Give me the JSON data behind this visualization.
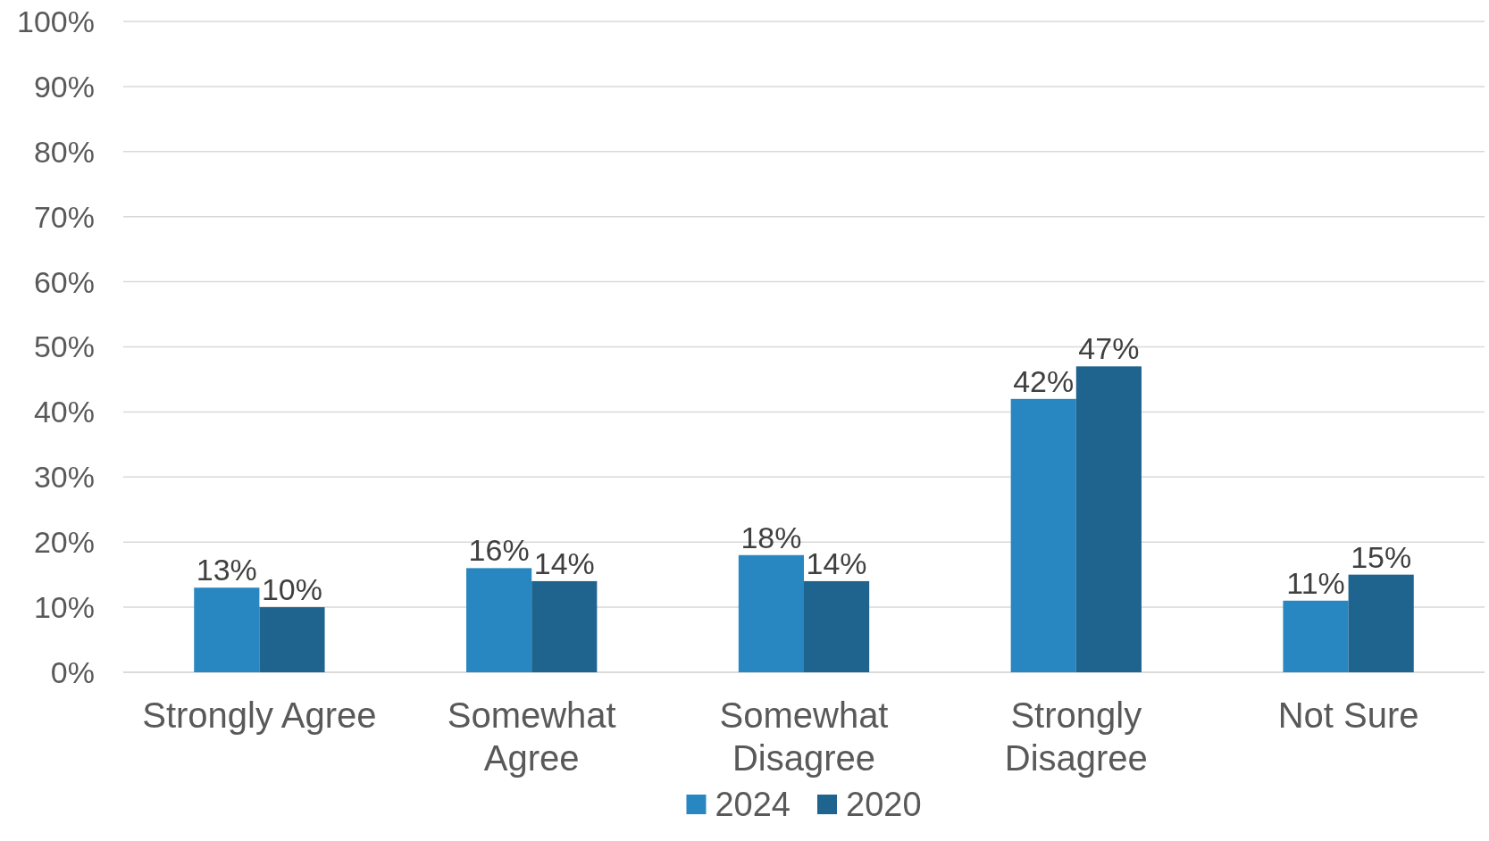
{
  "chart_data": {
    "type": "bar",
    "categories": [
      "Strongly Agree",
      "Somewhat Agree",
      "Somewhat Disagree",
      "Strongly Disagree",
      "Not Sure"
    ],
    "series": [
      {
        "name": "2024",
        "color": "#2886c0",
        "values": [
          13,
          16,
          18,
          42,
          11
        ],
        "value_labels": [
          "13%",
          "16%",
          "18%",
          "42%",
          "11%"
        ]
      },
      {
        "name": "2020",
        "color": "#1f638f",
        "values": [
          10,
          14,
          14,
          47,
          15
        ],
        "value_labels": [
          "10%",
          "14%",
          "14%",
          "47%",
          "15%"
        ]
      }
    ],
    "ylim": [
      0,
      100
    ],
    "yticks": [
      {
        "value": 0,
        "label": "0%"
      },
      {
        "value": 10,
        "label": "10%"
      },
      {
        "value": 20,
        "label": "20%"
      },
      {
        "value": 30,
        "label": "30%"
      },
      {
        "value": 40,
        "label": "40%"
      },
      {
        "value": 50,
        "label": "50%"
      },
      {
        "value": 60,
        "label": "60%"
      },
      {
        "value": 70,
        "label": "70%"
      },
      {
        "value": 80,
        "label": "80%"
      },
      {
        "value": 90,
        "label": "90%"
      },
      {
        "value": 100,
        "label": "100%"
      }
    ],
    "grid": "y",
    "legend": "bottom"
  }
}
